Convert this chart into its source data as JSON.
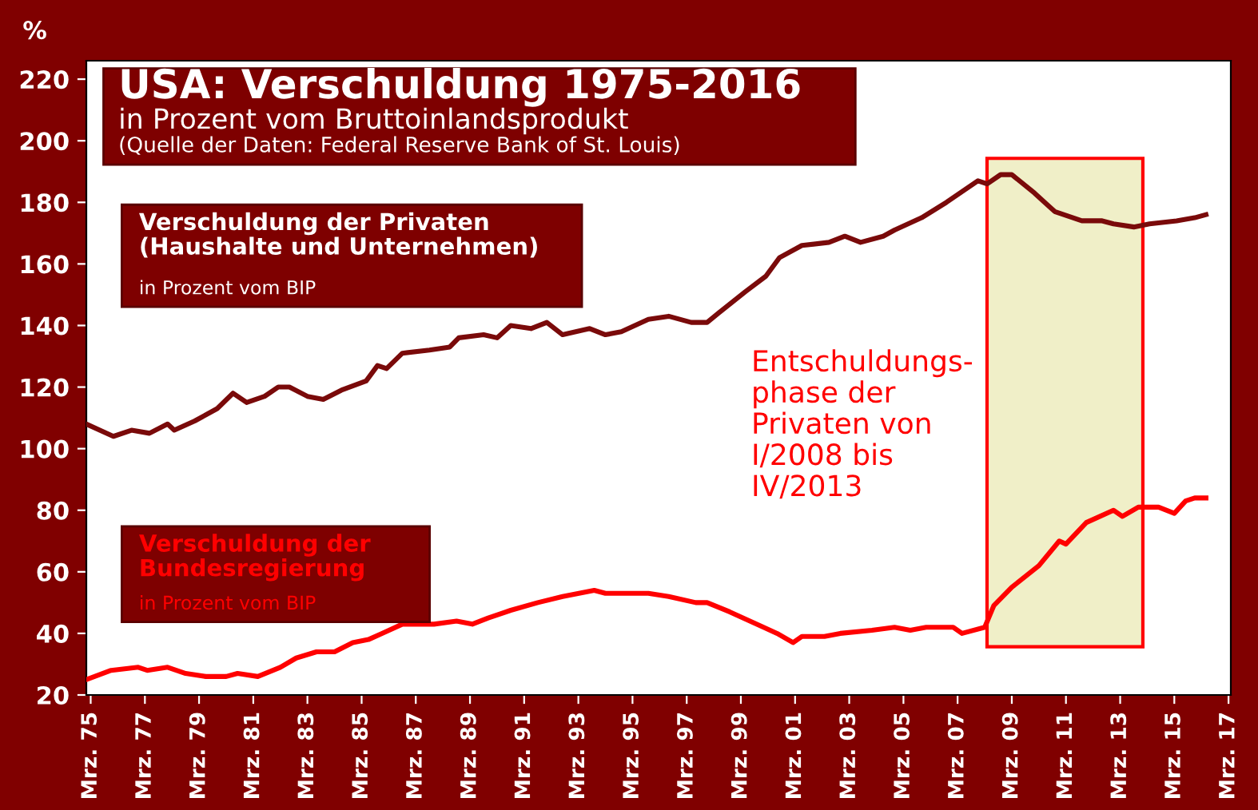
{
  "chart_data": {
    "type": "line",
    "title": "USA: Verschuldung 1975-2016",
    "subtitle": "in Prozent vom Bruttoinlandsprodukt",
    "ylabel": "%",
    "annotations": [
      "(Quelle der Daten: Federal Reserve Bank of St. Louis)",
      "in Prozent vom BIP",
      "in Prozent vom BIP"
    ],
    "series": [
      {
        "name": "Verschuldung der Privaten\n(Haushalte und Unternehmen)",
        "color": "#7a0a0a",
        "x": [
          "1975-01",
          "1976-01",
          "1976-09",
          "1977-05",
          "1978-01",
          "1978-04",
          "1979-01",
          "1979-11",
          "1980-06",
          "1980-12",
          "1981-08",
          "1982-02",
          "1982-07",
          "1983-03",
          "1983-10",
          "1984-06",
          "1985-05",
          "1985-10",
          "1986-02",
          "1986-09",
          "1987-09",
          "1988-06",
          "1988-10",
          "1989-09",
          "1990-03",
          "1990-09",
          "1991-06",
          "1992-01",
          "1992-08",
          "1993-08",
          "1994-03",
          "1994-10",
          "1995-10",
          "1996-07",
          "1997-05",
          "1997-12",
          "1998-05",
          "1999-05",
          "2000-02",
          "2000-08",
          "2001-06",
          "2002-06",
          "2003-01",
          "2003-08",
          "2004-06",
          "2004-11",
          "2005-11",
          "2006-10",
          "2007-12",
          "2008-04",
          "2008-10",
          "2009-03",
          "2010-01",
          "2010-10",
          "2011-10",
          "2012-07",
          "2012-12",
          "2013-09",
          "2014-04",
          "2015-04",
          "2015-12",
          "2016-05"
        ],
        "values": [
          108,
          104,
          106,
          105,
          108,
          106,
          109,
          113,
          118,
          115,
          117,
          120,
          120,
          117,
          116,
          119,
          122,
          127,
          126,
          131,
          132,
          133,
          136,
          137,
          136,
          140,
          139,
          141,
          137,
          139,
          137,
          138,
          142,
          143,
          141,
          141,
          144,
          151,
          156,
          162,
          166,
          167,
          169,
          167,
          169,
          171,
          175,
          180,
          187,
          186,
          189,
          189,
          183,
          177,
          174,
          174,
          173,
          172,
          173,
          174,
          175,
          176
        ]
      },
      {
        "name": "Verschuldung der\nBundesregierung",
        "color": "#ff0000",
        "x": [
          "1975-01",
          "1975-12",
          "1976-12",
          "1977-04",
          "1978-01",
          "1978-09",
          "1979-06",
          "1980-03",
          "1980-08",
          "1981-05",
          "1982-03",
          "1982-10",
          "1983-07",
          "1984-03",
          "1984-11",
          "1985-06",
          "1985-12",
          "1986-09",
          "1987-11",
          "1988-09",
          "1989-04",
          "1989-11",
          "1990-09",
          "1991-09",
          "1992-08",
          "1993-10",
          "1994-03",
          "1995-01",
          "1995-10",
          "1996-07",
          "1997-07",
          "1997-12",
          "1998-10",
          "1999-07",
          "2000-01",
          "2000-07",
          "2001-02",
          "2001-06",
          "2002-04",
          "2002-11",
          "2004-01",
          "2004-11",
          "2005-06",
          "2006-01",
          "2007-01",
          "2007-05",
          "2008-03",
          "2008-07",
          "2009-03",
          "2010-03",
          "2010-12",
          "2011-03",
          "2011-12",
          "2012-12",
          "2013-04",
          "2013-11",
          "2014-08",
          "2015-03",
          "2015-08",
          "2015-12",
          "2016-05"
        ],
        "values": [
          25,
          28,
          29,
          28,
          29,
          27,
          26,
          26,
          27,
          26,
          29,
          32,
          34,
          34,
          37,
          38,
          40,
          43,
          43,
          44,
          43,
          45,
          47.5,
          50,
          52,
          54,
          53,
          53,
          53,
          52,
          50,
          50,
          47,
          44,
          42,
          40,
          37,
          39,
          39,
          40,
          41,
          42,
          41,
          42,
          42,
          40,
          42,
          49,
          55,
          62,
          70,
          69,
          76,
          80,
          78,
          81,
          81,
          79,
          83,
          84,
          84
        ]
      }
    ],
    "xlim": [
      "1975-01",
      "2017-04"
    ],
    "xticks": [
      {
        "value": "1975-03",
        "label": "Mrz. 75"
      },
      {
        "value": "1977-03",
        "label": "Mrz. 77"
      },
      {
        "value": "1979-03",
        "label": "Mrz. 79"
      },
      {
        "value": "1981-03",
        "label": "Mrz. 81"
      },
      {
        "value": "1983-03",
        "label": "Mrz. 83"
      },
      {
        "value": "1985-03",
        "label": "Mrz. 85"
      },
      {
        "value": "1987-03",
        "label": "Mrz. 87"
      },
      {
        "value": "1989-03",
        "label": "Mrz. 89"
      },
      {
        "value": "1991-03",
        "label": "Mrz. 91"
      },
      {
        "value": "1993-03",
        "label": "Mrz. 93"
      },
      {
        "value": "1995-03",
        "label": "Mrz. 95"
      },
      {
        "value": "1997-03",
        "label": "Mrz. 97"
      },
      {
        "value": "1999-03",
        "label": "Mrz. 99"
      },
      {
        "value": "2001-03",
        "label": "Mrz. 01"
      },
      {
        "value": "2003-03",
        "label": "Mrz. 03"
      },
      {
        "value": "2005-03",
        "label": "Mrz. 05"
      },
      {
        "value": "2007-03",
        "label": "Mrz. 07"
      },
      {
        "value": "2009-03",
        "label": "Mrz. 09"
      },
      {
        "value": "2011-03",
        "label": "Mrz. 11"
      },
      {
        "value": "2013-03",
        "label": "Mrz. 13"
      },
      {
        "value": "2015-03",
        "label": "Mrz. 15"
      },
      {
        "value": "2017-03",
        "label": "Mrz. 17"
      }
    ],
    "ylim": [
      20,
      226
    ],
    "yticks": [
      20,
      40,
      60,
      80,
      100,
      120,
      140,
      160,
      180,
      200,
      220
    ],
    "bands": [
      {
        "axis": "x",
        "from": "2008-04",
        "to": "2014-01",
        "label": "Entschuldungs-\nphase der\nPrivaten von\nI/2008 bis\nIV/2013",
        "color": "#f0efc8"
      }
    ],
    "grid": false,
    "legend": false,
    "line_style": "solid",
    "marker": "none"
  }
}
